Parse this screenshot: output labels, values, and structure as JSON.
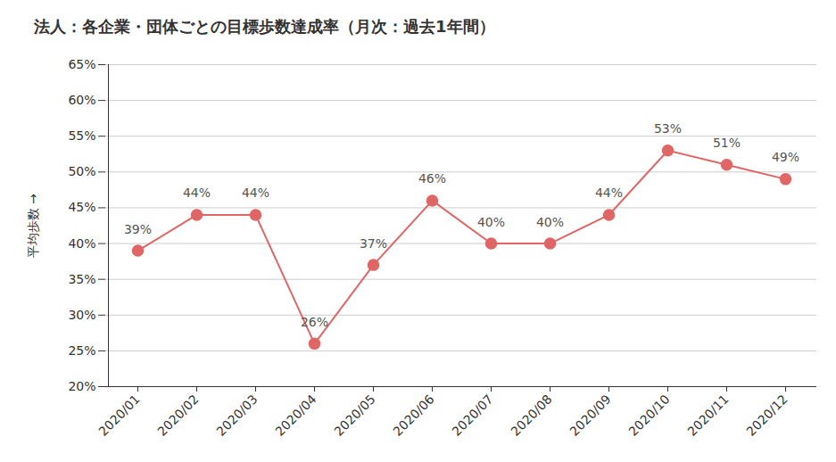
{
  "chart_data": {
    "type": "line",
    "title": "法人：各企業・団体ごとの目標歩数達成率（月次：過去1年間）",
    "y_label": "平均歩数",
    "categories": [
      "2020/01",
      "2020/02",
      "2020/03",
      "2020/04",
      "2020/05",
      "2020/06",
      "2020/07",
      "2020/08",
      "2020/09",
      "2020/10",
      "2020/11",
      "2020/12"
    ],
    "values": [
      39,
      44,
      44,
      26,
      37,
      46,
      40,
      40,
      44,
      53,
      51,
      49
    ],
    "value_labels": [
      "39%",
      "44%",
      "44%",
      "26%",
      "37%",
      "46%",
      "40%",
      "40%",
      "44%",
      "53%",
      "51%",
      "49%"
    ],
    "color": "#e06666",
    "marker": "circle",
    "data_labels": true,
    "grid": true,
    "ylim": [
      20,
      65
    ],
    "yticks": [
      {
        "value": 20,
        "label": "20%"
      },
      {
        "value": 25,
        "label": "25%"
      },
      {
        "value": 30,
        "label": "30%"
      },
      {
        "value": 35,
        "label": "35%"
      },
      {
        "value": 40,
        "label": "40%"
      },
      {
        "value": 45,
        "label": "45%"
      },
      {
        "value": 50,
        "label": "50%"
      },
      {
        "value": 55,
        "label": "55%"
      },
      {
        "value": 60,
        "label": "60%"
      },
      {
        "value": 65,
        "label": "65%"
      }
    ]
  }
}
